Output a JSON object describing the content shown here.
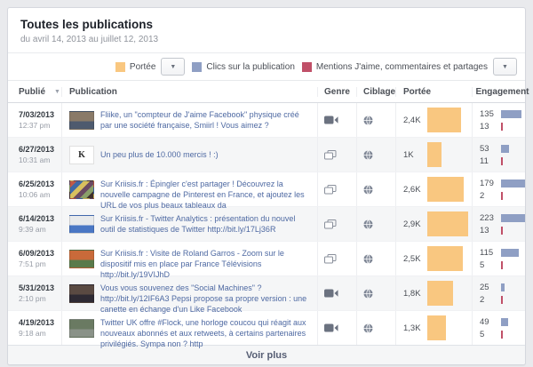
{
  "page": {
    "title": "Toutes les publications",
    "date_range": "du avril 14, 2013 au juillet 12, 2013"
  },
  "legend": {
    "reach_label": "Portée",
    "clicks_label": "Clics sur la publication",
    "likes_label": "Mentions J'aime, commentaires et partages",
    "colors": {
      "reach": "#f9c780",
      "clicks": "#8f9fc4",
      "likes": "#c05068"
    }
  },
  "table": {
    "columns": {
      "published": "Publié",
      "publication": "Publication",
      "genre": "Genre",
      "targeting": "Ciblage",
      "reach": "Portée",
      "engagement": "Engagement"
    },
    "rows": [
      {
        "date": "7/03/2013",
        "time": "12:37 pm",
        "text": "Fliike, un \"compteur de J'aime Facebook\" physique créé par une société française, Smiirl ! Vous aimez ?",
        "type": "video",
        "targeting": "global",
        "reach_label": "2,4K",
        "reach_value": 2400,
        "clicks": 135,
        "likes": 13,
        "thumb": {
          "colors": [
            "#8a7a68",
            "#4e5a6e"
          ]
        }
      },
      {
        "date": "6/27/2013",
        "time": "10:31 am",
        "text": "Un peu plus de 10.000 mercis ! :)",
        "type": "link",
        "targeting": "global",
        "reach_label": "1K",
        "reach_value": 1000,
        "clicks": 53,
        "likes": 11,
        "thumb": {
          "letter": "K",
          "colors": [
            "#ffffff",
            "#eeeeee"
          ]
        }
      },
      {
        "date": "6/25/2013",
        "time": "10:06 am",
        "text": "Sur Kriisis.fr : Épingler c'est partager ! Découvrez la nouvelle campagne de Pinterest en France, et ajoutez les URL de vos plus beaux tableaux da",
        "type": "link",
        "targeting": "global",
        "reach_label": "2,6K",
        "reach_value": 2600,
        "clicks": 179,
        "likes": 2,
        "thumb": {
          "colors": [
            "#c05a48",
            "#3f69a6",
            "#d8c05e",
            "#6a4a62",
            "#8aa06a",
            "#40302c"
          ]
        }
      },
      {
        "date": "6/14/2013",
        "time": "9:39 am",
        "text": "Sur Kriisis.fr - Twitter Analytics : présentation du nouvel outil de statistiques de Twitter http://bit.ly/17Lj36R",
        "type": "link",
        "targeting": "global",
        "reach_label": "2,9K",
        "reach_value": 2900,
        "clicks": 223,
        "likes": 13,
        "thumb": {
          "colors": [
            "#e8eaec",
            "#4a77c4"
          ]
        }
      },
      {
        "date": "6/09/2013",
        "time": "7:51 pm",
        "text": "Sur Kriisis.fr : Visite de Roland Garros - Zoom sur le dispositif mis en place par France Télévisions http://bit.ly/19VIJhD",
        "type": "link",
        "targeting": "global",
        "reach_label": "2,5K",
        "reach_value": 2500,
        "clicks": 115,
        "likes": 5,
        "thumb": {
          "colors": [
            "#c96a3a",
            "#5a7a4a"
          ]
        }
      },
      {
        "date": "5/31/2013",
        "time": "2:10 pm",
        "text": "Vous vous souvenez des \"Social Machines\" ? http://bit.ly/12IF6A3 Pepsi propose sa propre version : une canette en échange d'un Like Facebook",
        "type": "video",
        "targeting": "global",
        "reach_label": "1,8K",
        "reach_value": 1800,
        "clicks": 25,
        "likes": 2,
        "thumb": {
          "colors": [
            "#5a4a42",
            "#2e2a33"
          ]
        }
      },
      {
        "date": "4/19/2013",
        "time": "9:18 am",
        "text": "Twitter UK offre #Flock, une horloge coucou qui réagit aux nouveaux abonnés et aux retweets, à certains partenaires privilégiés. Sympa non ? http",
        "type": "video",
        "targeting": "global",
        "reach_label": "1,3K",
        "reach_value": 1300,
        "clicks": 49,
        "likes": 5,
        "thumb": {
          "colors": [
            "#6a7a62",
            "#8a9288"
          ]
        }
      }
    ]
  },
  "footer": {
    "see_more_label": "Voir plus"
  }
}
